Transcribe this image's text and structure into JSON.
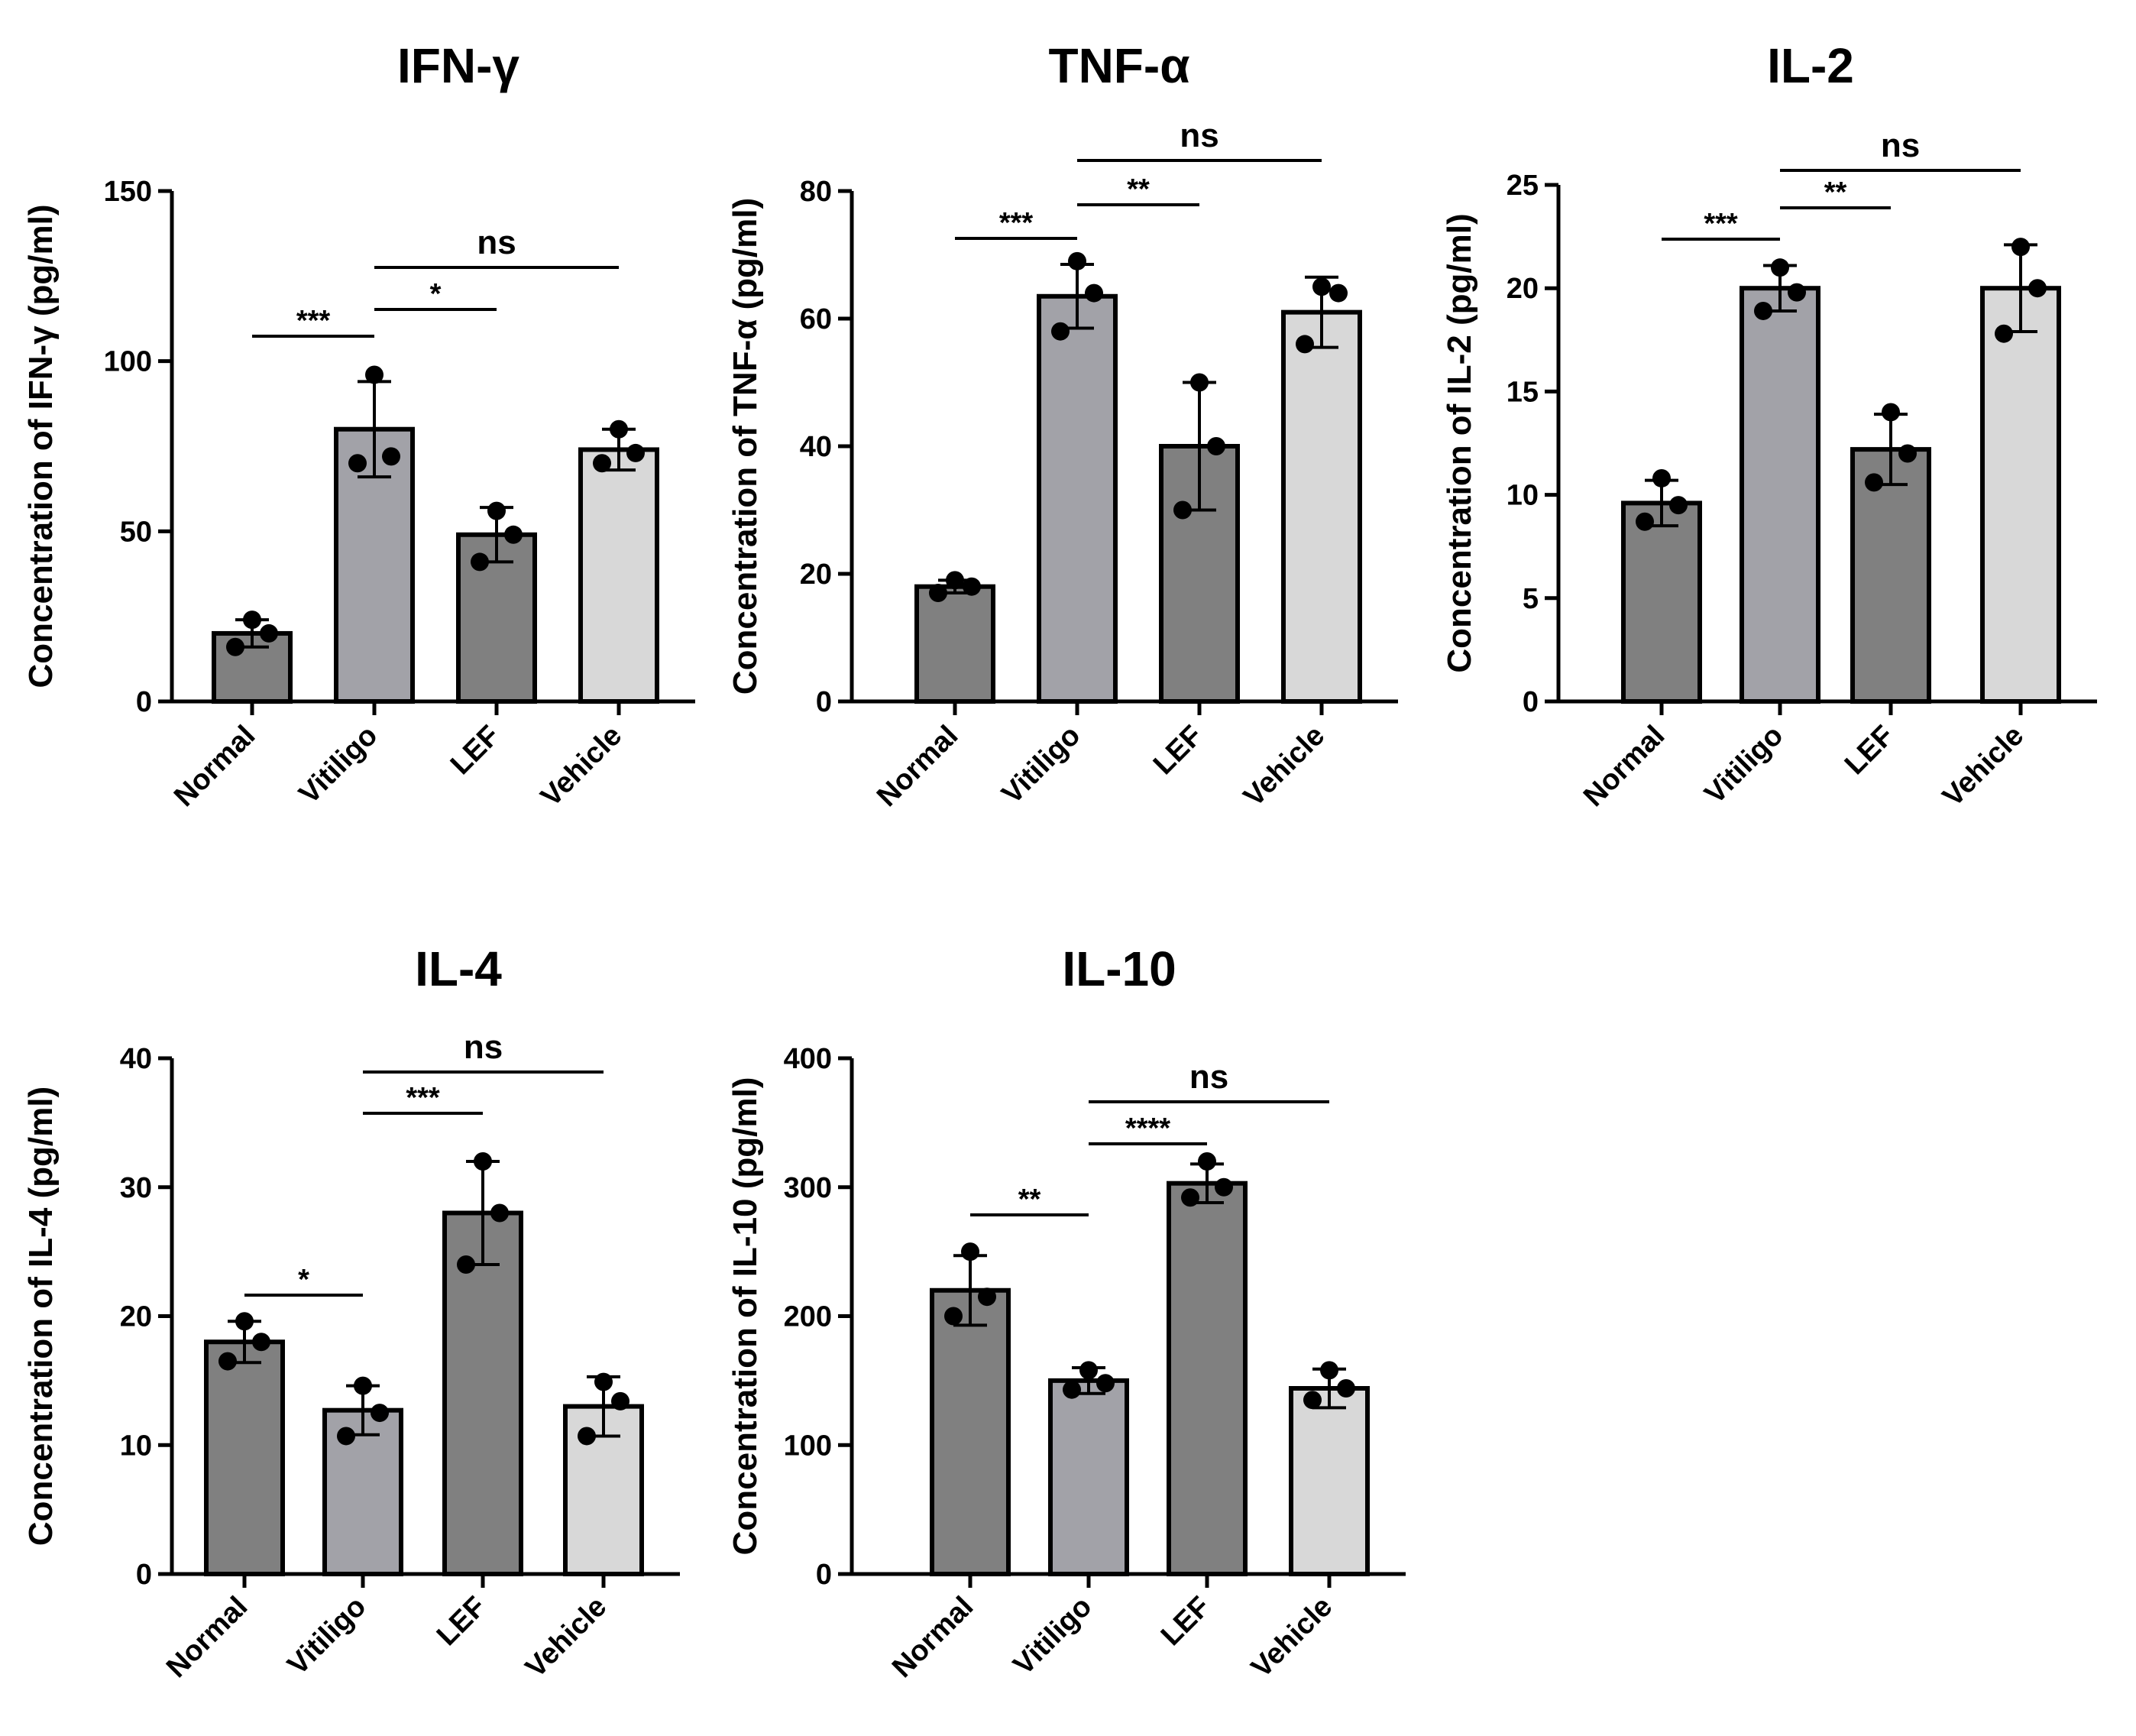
{
  "chart_data": [
    {
      "type": "bar",
      "title": "IFN-γ",
      "ylabel": "Concentration of IFN-γ (pg/ml)",
      "categories": [
        "Normal",
        "Vitiligo",
        "LEF",
        "Vehicle"
      ],
      "values": [
        20,
        80,
        49,
        74
      ],
      "error": [
        4,
        14,
        8,
        6
      ],
      "points": [
        [
          16,
          20,
          24
        ],
        [
          70,
          72,
          96
        ],
        [
          41,
          49,
          56
        ],
        [
          70,
          73,
          80
        ]
      ],
      "ylim": [
        0,
        150
      ],
      "yticks": [
        "0",
        "50",
        "100",
        "150"
      ],
      "significance": [
        {
          "from": 0,
          "to": 1,
          "label": "***"
        },
        {
          "from": 1,
          "to": 2,
          "label": "*"
        },
        {
          "from": 1,
          "to": 3,
          "label": "ns"
        }
      ],
      "colors": [
        "#808080",
        "#a2a2a8",
        "#808080",
        "#d8d8d8"
      ]
    },
    {
      "type": "bar",
      "title": "TNF-α",
      "ylabel": "Concentration of TNF-α (pg/ml)",
      "categories": [
        "Normal",
        "Vitiligo",
        "LEF",
        "Vehicle"
      ],
      "values": [
        18,
        63.5,
        40,
        61
      ],
      "error": [
        1,
        5,
        10,
        5.5
      ],
      "points": [
        [
          17,
          18,
          19
        ],
        [
          58,
          64,
          69
        ],
        [
          30,
          40,
          50
        ],
        [
          56,
          64,
          65
        ]
      ],
      "ylim": [
        0,
        80
      ],
      "yticks": [
        "0",
        "20",
        "40",
        "60",
        "80"
      ],
      "significance": [
        {
          "from": 0,
          "to": 1,
          "label": "***"
        },
        {
          "from": 1,
          "to": 2,
          "label": "**"
        },
        {
          "from": 1,
          "to": 3,
          "label": "ns"
        }
      ],
      "colors": [
        "#808080",
        "#a2a2a8",
        "#808080",
        "#d8d8d8"
      ]
    },
    {
      "type": "bar",
      "title": "IL-2",
      "ylabel": "Concentration of IL-2 (pg/ml)",
      "categories": [
        "Normal",
        "Vitiligo",
        "LEF",
        "Vehicle"
      ],
      "values": [
        9.6,
        20,
        12.2,
        20
      ],
      "error": [
        1.1,
        1.1,
        1.7,
        2.1
      ],
      "points": [
        [
          8.7,
          9.5,
          10.8
        ],
        [
          18.9,
          19.8,
          21
        ],
        [
          10.6,
          12,
          14
        ],
        [
          17.8,
          20,
          22
        ]
      ],
      "ylim": [
        0,
        25
      ],
      "yticks": [
        "0",
        "5",
        "10",
        "15",
        "20",
        "25"
      ],
      "significance": [
        {
          "from": 0,
          "to": 1,
          "label": "***"
        },
        {
          "from": 1,
          "to": 2,
          "label": "**"
        },
        {
          "from": 1,
          "to": 3,
          "label": "ns"
        }
      ],
      "colors": [
        "#808080",
        "#a2a2a8",
        "#808080",
        "#d8d8d8"
      ]
    },
    {
      "type": "bar",
      "title": "IL-4",
      "ylabel": "Concentration of IL-4 (pg/ml)",
      "categories": [
        "Normal",
        "Vitiligo",
        "LEF",
        "Vehicle"
      ],
      "values": [
        18,
        12.7,
        28,
        13
      ],
      "error": [
        1.6,
        1.9,
        4,
        2.3
      ],
      "points": [
        [
          16.5,
          18,
          19.6
        ],
        [
          10.7,
          12.5,
          14.6
        ],
        [
          24,
          28,
          32
        ],
        [
          10.7,
          13.4,
          14.9
        ]
      ],
      "ylim": [
        0,
        40
      ],
      "yticks": [
        "0",
        "10",
        "20",
        "30",
        "40"
      ],
      "significance": [
        {
          "from": 0,
          "to": 1,
          "label": "*"
        },
        {
          "from": 1,
          "to": 2,
          "label": "***"
        },
        {
          "from": 1,
          "to": 3,
          "label": "ns"
        }
      ],
      "colors": [
        "#808080",
        "#a2a2a8",
        "#808080",
        "#d8d8d8"
      ]
    },
    {
      "type": "bar",
      "title": "IL-10",
      "ylabel": "Concentration of IL-10 (pg/ml)",
      "categories": [
        "Normal",
        "Vitiligo",
        "LEF",
        "Vehicle"
      ],
      "values": [
        220,
        150,
        303,
        144
      ],
      "error": [
        27,
        10,
        15,
        15
      ],
      "points": [
        [
          200,
          215,
          250
        ],
        [
          143,
          148,
          158
        ],
        [
          292,
          300,
          320
        ],
        [
          135,
          144,
          158
        ]
      ],
      "ylim": [
        0,
        400
      ],
      "yticks": [
        "0",
        "100",
        "200",
        "300",
        "400"
      ],
      "significance": [
        {
          "from": 0,
          "to": 1,
          "label": "**"
        },
        {
          "from": 1,
          "to": 2,
          "label": "****"
        },
        {
          "from": 1,
          "to": 3,
          "label": "ns"
        }
      ],
      "colors": [
        "#808080",
        "#a2a2a8",
        "#808080",
        "#d8d8d8"
      ]
    }
  ]
}
